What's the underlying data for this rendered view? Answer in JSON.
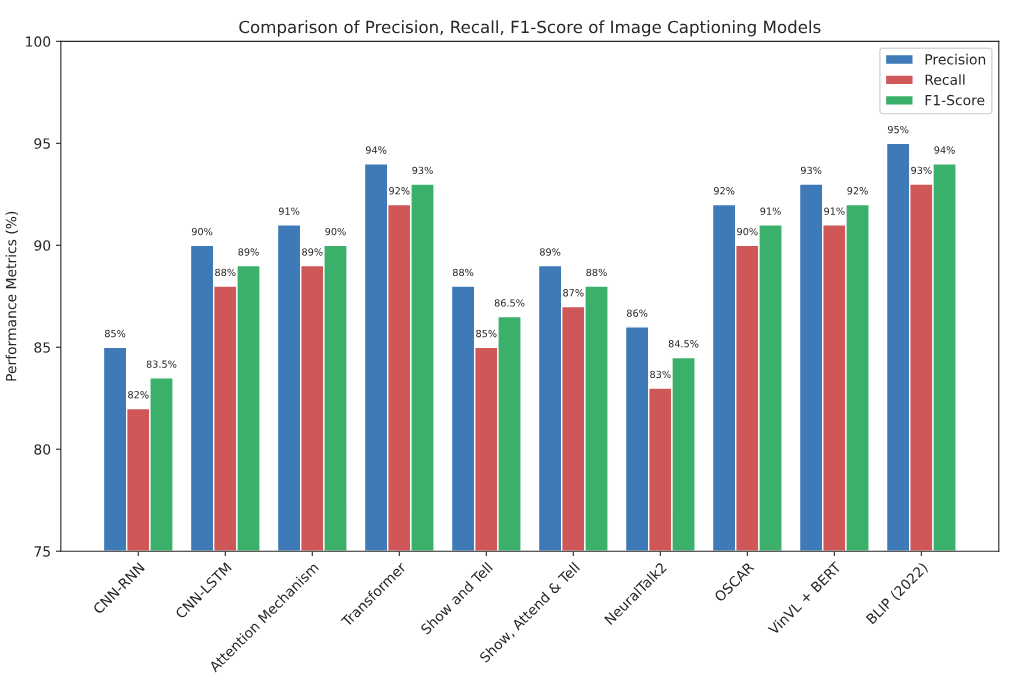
{
  "chart_data": {
    "type": "bar",
    "title": "Comparison of Precision, Recall, F1-Score of Image Captioning Models",
    "ylabel": "Performance Metrics (%)",
    "categories": [
      "CNN-RNN",
      "CNN-LSTM",
      "Attention Mechanism",
      "Transformer",
      "Show and Tell",
      "Show, Attend & Tell",
      "NeuralTalk2",
      "OSCAR",
      "VinVL + BERT",
      "BLIP (2022)"
    ],
    "series": [
      {
        "name": "Precision",
        "color": "#3f7ab8",
        "values": [
          85,
          90,
          91,
          94,
          88,
          89,
          86,
          92,
          93,
          95
        ],
        "value_labels": [
          "85%",
          "90%",
          "91%",
          "94%",
          "88%",
          "89%",
          "86%",
          "92%",
          "93%",
          "95%"
        ]
      },
      {
        "name": "Recall",
        "color": "#d05757",
        "values": [
          82,
          88,
          89,
          92,
          85,
          87,
          83,
          90,
          91,
          93
        ],
        "value_labels": [
          "82%",
          "88%",
          "89%",
          "92%",
          "85%",
          "87%",
          "83%",
          "90%",
          "91%",
          "93%"
        ]
      },
      {
        "name": "F1-Score",
        "color": "#3bb06a",
        "values": [
          83.5,
          89,
          90,
          93,
          86.5,
          88,
          84.5,
          91,
          92,
          94
        ],
        "value_labels": [
          "83.5%",
          "89%",
          "90%",
          "93%",
          "86.5%",
          "88%",
          "84.5%",
          "91%",
          "92%",
          "94%"
        ]
      }
    ],
    "ylim": [
      75,
      100
    ],
    "yticks": [
      75,
      80,
      85,
      90,
      95,
      100
    ],
    "grid": false,
    "legend": "top right"
  }
}
